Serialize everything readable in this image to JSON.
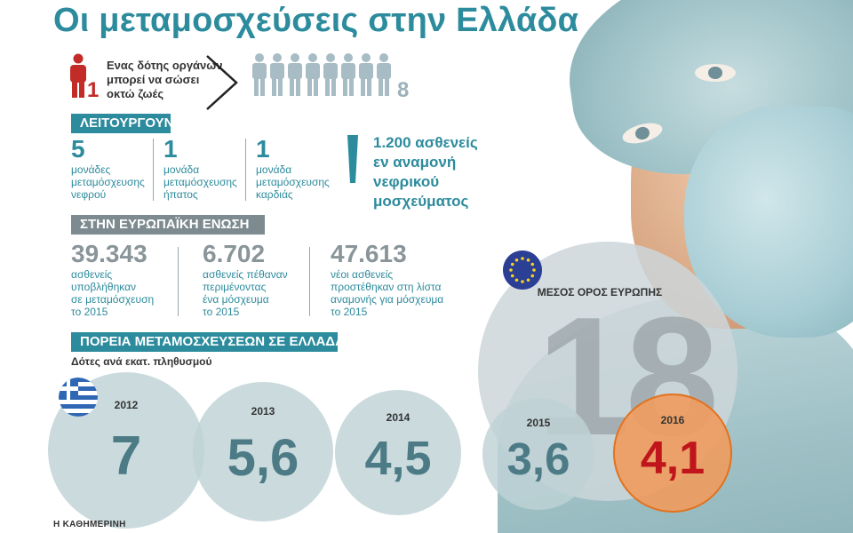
{
  "title": "Οι μεταμοσχεύσεις στην Ελλάδα",
  "donor": {
    "text_lines": [
      "Ενας δότης οργάνων",
      "μπορεί να σώσει",
      "οκτώ ζωές"
    ],
    "count": "1",
    "saved": "8"
  },
  "operating": {
    "header": "ΛΕΙΤΟΥΡΓΟΥΝ",
    "items": [
      {
        "value": "5",
        "lines": [
          "μονάδες",
          "μεταμόσχευσης",
          "νεφρού"
        ]
      },
      {
        "value": "1",
        "lines": [
          "μονάδα",
          "μεταμόσχευσης",
          "ήπατος"
        ]
      },
      {
        "value": "1",
        "lines": [
          "μονάδα",
          "μεταμόσχευσης",
          "καρδιάς"
        ]
      }
    ],
    "waiting_lines": [
      "1.200 ασθενείς",
      "εν αναμονή",
      "νεφρικού",
      "μοσχεύματος"
    ]
  },
  "eu": {
    "header": "ΣΤΗΝ ΕΥΡΩΠΑΪΚΗ ΕΝΩΣΗ",
    "items": [
      {
        "value": "39.343",
        "lines": [
          "ασθενείς",
          "υποβλήθηκαν",
          "σε μεταμόσχευση",
          "το 2015"
        ]
      },
      {
        "value": "6.702",
        "lines": [
          "ασθενείς πέθαναν",
          "περιμένοντας",
          "ένα μόσχευμα",
          "το 2015"
        ]
      },
      {
        "value": "47.613",
        "lines": [
          "νέοι ασθενείς",
          "προστέθηκαν στη λίστα",
          "αναμονής για μόσχευμα",
          "το 2015"
        ]
      }
    ]
  },
  "chart_data": {
    "type": "bubble",
    "title": "ΠΟΡΕΙΑ ΜΕΤΑΜΟΣΧΕΥΣΕΩΝ ΣΕ ΕΛΛΑΔΑ",
    "subtitle": "Δότες ανά εκατ. πληθυσμού",
    "categories": [
      "2012",
      "2013",
      "2014",
      "2015",
      "2016"
    ],
    "series": [
      {
        "values": [
          7,
          5.6,
          4.5,
          3.6,
          4.1
        ]
      }
    ],
    "value_labels": [
      "7",
      "5,6",
      "4,5",
      "3,6",
      "4,1"
    ],
    "highlight": "2016",
    "reference": {
      "label": "ΜΕΣΟΣ ΟΡΟΣ ΕΥΡΩΠΗΣ",
      "value": 18,
      "value_label": "18"
    },
    "colors": {
      "circle": "#bed2d6",
      "highlight": "#ee9c60",
      "value": "#4c7b86",
      "highlight_value": "#c0151b"
    }
  },
  "credit": "Η ΚΑΘΗΜΕΡΙΝΗ",
  "colors": {
    "accent": "#2c8b9c",
    "donor_red": "#c22b27",
    "section_gray": "#7d8a90"
  },
  "icons": [
    "person-icon",
    "chevron-right-icon",
    "exclamation-icon",
    "eu-flag-icon",
    "greek-flag-icon"
  ]
}
